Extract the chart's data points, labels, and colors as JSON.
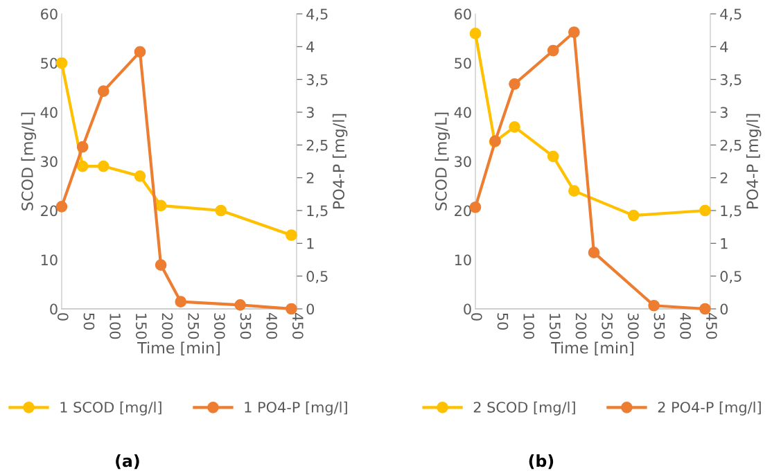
{
  "chart_data": [
    {
      "type": "line",
      "xlabel": "Time [min]",
      "ylabel": "SCOD [mg/L]",
      "y2label": "PO4-P [mg/l]",
      "annotations": [
        "(a)"
      ],
      "legend": "bottom",
      "marker": "circle",
      "grid": false,
      "xlim": [
        0,
        450
      ],
      "xticks": [
        0,
        50,
        100,
        150,
        200,
        250,
        300,
        350,
        400,
        450
      ],
      "ylim": [
        0,
        60
      ],
      "yticks": [
        0,
        10,
        20,
        30,
        40,
        50,
        60
      ],
      "y2lim": [
        0,
        4.5
      ],
      "y2ticks": [
        0,
        {
          "value": 0.5,
          "label": "0,5"
        },
        1,
        {
          "value": 1.5,
          "label": "1,5"
        },
        2,
        {
          "value": 2.5,
          "label": "2,5"
        },
        3,
        {
          "value": 3.5,
          "label": "3,5"
        },
        4,
        {
          "value": 4.5,
          "label": "4,5"
        }
      ],
      "series": [
        {
          "name": "1 SCOD [mg/l]",
          "color": "#ffc000",
          "x": [
            0,
            40,
            80,
            150,
            190,
            305,
            440
          ],
          "values": [
            50,
            29,
            29,
            27,
            21,
            20,
            15
          ]
        },
        {
          "name": "1 PO4-P [mg/l]",
          "color": "#ed7d31",
          "axis": "y2",
          "x": [
            0,
            40,
            80,
            150,
            190,
            228,
            342,
            440
          ],
          "values": [
            1.56,
            2.47,
            3.32,
            3.92,
            0.67,
            0.11,
            0.06,
            0
          ]
        }
      ]
    },
    {
      "type": "line",
      "xlabel": "Time [min]",
      "ylabel": "SCOD [mg/L]",
      "y2label": "PO4-P [mg/l]",
      "annotations": [
        "(b)"
      ],
      "legend": "bottom",
      "marker": "circle",
      "grid": false,
      "xlim": [
        0,
        450
      ],
      "xticks": [
        0,
        50,
        100,
        150,
        200,
        250,
        300,
        350,
        400,
        450
      ],
      "ylim": [
        0,
        60
      ],
      "yticks": [
        0,
        10,
        20,
        30,
        40,
        50,
        60
      ],
      "y2lim": [
        0,
        4.5
      ],
      "y2ticks": [
        0,
        {
          "value": 0.5,
          "label": "0,5"
        },
        1,
        {
          "value": 1.5,
          "label": "1,5"
        },
        2,
        {
          "value": 2.5,
          "label": "2,5"
        },
        3,
        {
          "value": 3.5,
          "label": "3,5"
        },
        4,
        {
          "value": 4.5,
          "label": "4,5"
        }
      ],
      "series": [
        {
          "name": "2 SCOD [mg/l]",
          "color": "#ffc000",
          "x": [
            0,
            37,
            75,
            149,
            189,
            303,
            440
          ],
          "values": [
            56,
            34,
            37,
            31,
            24,
            19,
            20
          ]
        },
        {
          "name": "2 PO4-P [mg/l]",
          "color": "#ed7d31",
          "axis": "y2",
          "x": [
            0,
            38,
            75,
            149,
            189,
            227,
            342,
            440
          ],
          "values": [
            1.55,
            2.56,
            3.43,
            3.94,
            4.22,
            0.86,
            0.05,
            0
          ]
        }
      ]
    }
  ]
}
